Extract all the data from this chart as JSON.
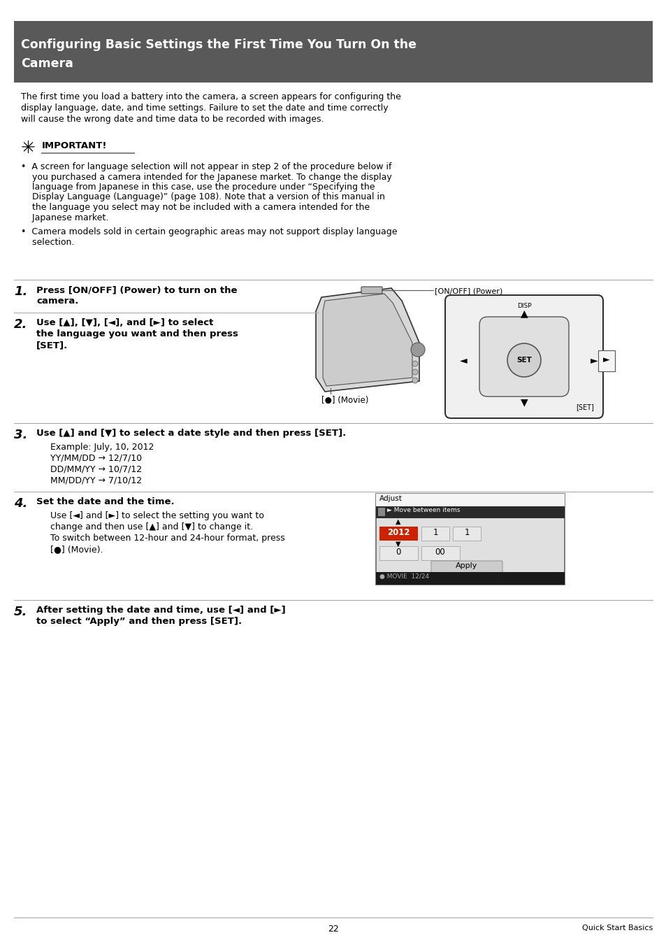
{
  "page_bg": "#ffffff",
  "header_bg": "#595959",
  "header_text_color": "#ffffff",
  "header_text_line1": "Configuring Basic Settings the First Time You Turn On the",
  "header_text_line2": "Camera",
  "header_fontsize": 12.5,
  "body_fontsize": 9.0,
  "step_num_fontsize": 13,
  "step_bold_fontsize": 9.5,
  "text_color": "#000000",
  "intro_line1": "The first time you load a battery into the camera, a screen appears for configuring the",
  "intro_line2": "display language, date, and time settings. Failure to set the date and time correctly",
  "intro_line3": "will cause the wrong date and time data to be recorded with images.",
  "important_label": "IMPORTANT!",
  "b1l1": "•  A screen for language selection will not appear in step 2 of the procedure below if",
  "b1l2": "    you purchased a camera intended for the Japanese market. To change the display",
  "b1l3": "    language from Japanese in this case, use the procedure under “Specifying the",
  "b1l4": "    Display Language (Language)” (page 108). Note that a version of this manual in",
  "b1l5": "    the language you select may not be included with a camera intended for the",
  "b1l6": "    Japanese market.",
  "b2l1": "•  Camera models sold in certain geographic areas may not support display language",
  "b2l2": "    selection.",
  "step1_num": "1.",
  "step1_bold1": "Press [ON/OFF] (Power) to turn on the",
  "step1_bold2": "camera.",
  "step2_num": "2.",
  "step2_bold1": "Use [▲], [▼], [◄], and [►] to select",
  "step2_bold2": "the language you want and then press",
  "step2_bold3": "[SET].",
  "step3_num": "3.",
  "step3_bold": "Use [▲] and [▼] to select a date style and then press [SET].",
  "step3_ex": "Example: July, 10, 2012",
  "step3_l1": "YY/MM/DD → 12/7/10",
  "step3_l2": "DD/MM/YY → 10/7/12",
  "step3_l3": "MM/DD/YY → 7/10/12",
  "step4_num": "4.",
  "step4_bold": "Set the date and the time.",
  "step4_t1": "Use [◄] and [►] to select the setting you want to",
  "step4_t2": "change and then use [▲] and [▼] to change it.",
  "step4_t3": "To switch between 12-hour and 24-hour format, press",
  "step4_t4": "[●] (Movie).",
  "step5_num": "5.",
  "step5_bold1": "After setting the date and time, use [◄] and [►]",
  "step5_bold2": "to select “Apply” and then press [SET].",
  "page_num": "22",
  "footer_right": "Quick Start Basics",
  "div_color": "#aaaaaa",
  "important_ul_color": "#888888"
}
